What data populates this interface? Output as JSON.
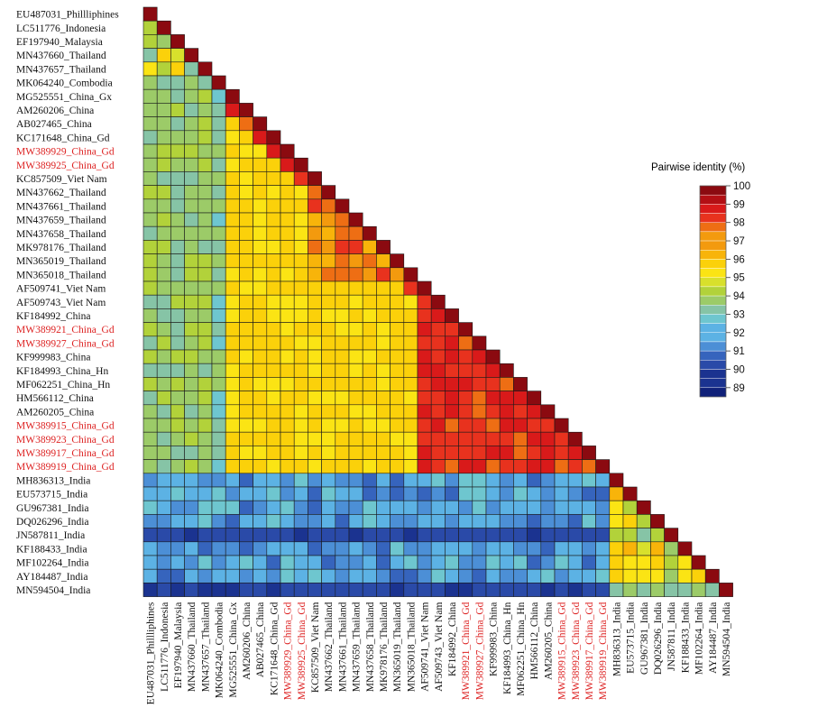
{
  "chart_data": {
    "type": "heatmap",
    "title": "",
    "legend_title": "Pairwise identity (%)",
    "legend_range": [
      88.5,
      100
    ],
    "legend_ticks": [
      100,
      99,
      98,
      97,
      96,
      95,
      94,
      93,
      92,
      91,
      90,
      89
    ],
    "highlight_color": "#dd2222",
    "label_color": "#111111",
    "colorscale": [
      [
        88.5,
        "#10217a"
      ],
      [
        89.5,
        "#1b3390"
      ],
      [
        90.5,
        "#2a4aa8"
      ],
      [
        91.0,
        "#3664bd"
      ],
      [
        91.5,
        "#4c8fd6"
      ],
      [
        92.0,
        "#5cb2e4"
      ],
      [
        92.6,
        "#6ec6cf"
      ],
      [
        93.2,
        "#86c4a6"
      ],
      [
        93.8,
        "#9ccb68"
      ],
      [
        94.3,
        "#b2d23a"
      ],
      [
        94.7,
        "#d8e02c"
      ],
      [
        95.2,
        "#fbe414"
      ],
      [
        95.8,
        "#fbd10a"
      ],
      [
        96.4,
        "#f8b40a"
      ],
      [
        97.0,
        "#f39a0e"
      ],
      [
        97.6,
        "#ee6e14"
      ],
      [
        98.2,
        "#e8321e"
      ],
      [
        98.8,
        "#d91a1a"
      ],
      [
        99.5,
        "#b30f14"
      ],
      [
        100,
        "#8b0a10"
      ]
    ],
    "labels": [
      {
        "text": "EU487031_Phillliphines",
        "group": 0,
        "highlight": false
      },
      {
        "text": "LC511776_Indonesia",
        "group": 0,
        "highlight": false
      },
      {
        "text": "EF197940_Malaysia",
        "group": 0,
        "highlight": false
      },
      {
        "text": "MN437660_Thailand",
        "group": 0,
        "highlight": false
      },
      {
        "text": "MN437657_Thailand",
        "group": 0,
        "highlight": false
      },
      {
        "text": "MK064240_Combodia",
        "group": 0,
        "highlight": false
      },
      {
        "text": "MG525551_China_Gx",
        "group": 1,
        "highlight": false
      },
      {
        "text": "AM260206_China",
        "group": 1,
        "highlight": false
      },
      {
        "text": "AB027465_China",
        "group": 1,
        "highlight": false
      },
      {
        "text": "KC171648_China_Gd",
        "group": 1,
        "highlight": false
      },
      {
        "text": "MW389929_China_Gd",
        "group": 1,
        "highlight": true
      },
      {
        "text": "MW389925_China_Gd",
        "group": 1,
        "highlight": true
      },
      {
        "text": "KC857509_Viet Nam",
        "group": 1,
        "highlight": false
      },
      {
        "text": "MN437662_Thailand",
        "group": 1,
        "highlight": false
      },
      {
        "text": "MN437661_Thailand",
        "group": 1,
        "highlight": false
      },
      {
        "text": "MN437659_Thailand",
        "group": 1,
        "highlight": false
      },
      {
        "text": "MN437658_Thailand",
        "group": 1,
        "highlight": false
      },
      {
        "text": "MK978176_Thailand",
        "group": 1,
        "highlight": false
      },
      {
        "text": "MN365019_Thailand",
        "group": 1,
        "highlight": false
      },
      {
        "text": "MN365018_Thailand",
        "group": 1,
        "highlight": false
      },
      {
        "text": "AF509741_Viet Nam",
        "group": 1,
        "highlight": false
      },
      {
        "text": "AF509743_Viet Nam",
        "group": 1,
        "highlight": false
      },
      {
        "text": "KF184992_China",
        "group": 1,
        "highlight": false
      },
      {
        "text": "MW389921_China_Gd",
        "group": 1,
        "highlight": true
      },
      {
        "text": "MW389927_China_Gd",
        "group": 1,
        "highlight": true
      },
      {
        "text": "KF999983_China",
        "group": 1,
        "highlight": false
      },
      {
        "text": "KF184993_China_Hn",
        "group": 1,
        "highlight": false
      },
      {
        "text": "MF062251_China_Hn",
        "group": 1,
        "highlight": false
      },
      {
        "text": "HM566112_China",
        "group": 1,
        "highlight": false
      },
      {
        "text": "AM260205_China",
        "group": 1,
        "highlight": false
      },
      {
        "text": "MW389915_China_Gd",
        "group": 1,
        "highlight": true
      },
      {
        "text": "MW389923_China_Gd",
        "group": 1,
        "highlight": true
      },
      {
        "text": "MW389917_China_Gd",
        "group": 1,
        "highlight": true
      },
      {
        "text": "MW389919_China_Gd",
        "group": 1,
        "highlight": true
      },
      {
        "text": "MH836313_India",
        "group": 2,
        "highlight": false
      },
      {
        "text": "EU573715_India",
        "group": 2,
        "highlight": false
      },
      {
        "text": "GU967381_India",
        "group": 2,
        "highlight": false
      },
      {
        "text": "DQ026296_India",
        "group": 2,
        "highlight": false
      },
      {
        "text": "JN587811_India",
        "group": 2,
        "highlight": false
      },
      {
        "text": "KF188433_India",
        "group": 2,
        "highlight": false
      },
      {
        "text": "MF102264_India",
        "group": 2,
        "highlight": false
      },
      {
        "text": "AY184487_India",
        "group": 2,
        "highlight": false
      },
      {
        "text": "MN594504_India",
        "group": 2,
        "highlight": false
      }
    ],
    "block_identity": {
      "within_group_0": 94.2,
      "within_group_1_chinese": 95.6,
      "within_group_1_thai_viet": 97.2,
      "within_group_1_recent": 98.4,
      "group0_vs_group1": 93.8,
      "group1_vs_mk064240": 93.1,
      "india_vs_others": 91.8,
      "india_vs_outlier": 90.2,
      "within_india": 95.4,
      "india_outlier_vs_india": 93.6,
      "diagonal": 100
    },
    "outlier_rows": [
      "JN587811_India",
      "MN594504_India"
    ],
    "special_rows": [
      "MK064240_Combodia"
    ]
  }
}
